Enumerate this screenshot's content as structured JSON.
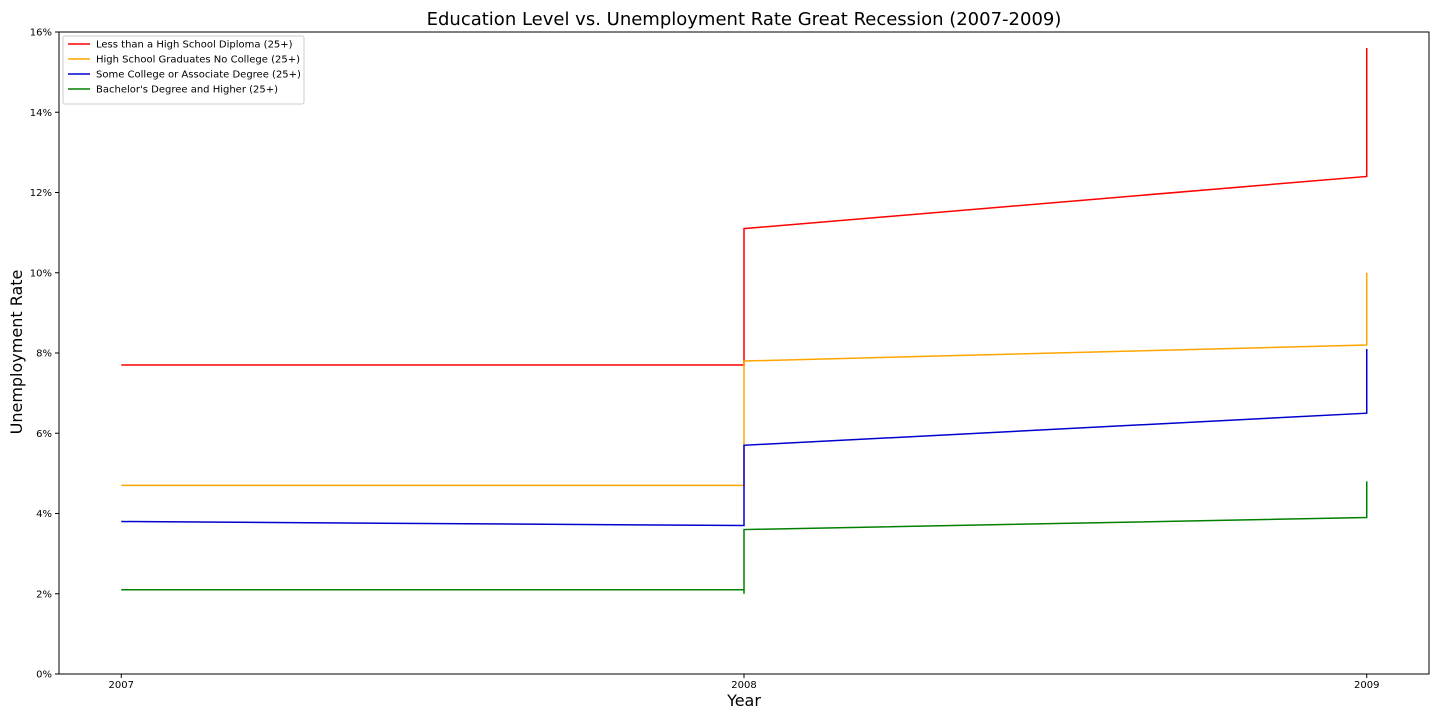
{
  "chart_data": {
    "type": "line",
    "title": "Education Level vs. Unemployment Rate Great Recession (2007-2009)",
    "xlabel": "Year",
    "ylabel": "Unemployment Rate",
    "xlim": [
      2006.9,
      2009.1
    ],
    "ylim": [
      0,
      16
    ],
    "x_ticks": [
      2007,
      2008,
      2009
    ],
    "x_tick_labels": [
      "2007",
      "2008",
      "2009"
    ],
    "y_ticks": [
      0,
      2,
      4,
      6,
      8,
      10,
      12,
      14,
      16
    ],
    "y_tick_labels": [
      "0%",
      "2%",
      "4%",
      "6%",
      "8%",
      "10%",
      "12%",
      "14%",
      "16%"
    ],
    "grid": false,
    "legend_position": "top-left",
    "series": [
      {
        "name": "Less than a High School Diploma (25+)",
        "color": "#ff0000",
        "points": [
          [
            2007.0,
            7.7
          ],
          [
            2008.0,
            7.7
          ],
          [
            2008.0,
            8.7
          ],
          [
            2008.0,
            8.4
          ],
          [
            2008.0,
            11.1
          ],
          [
            2009.0,
            12.4
          ],
          [
            2009.0,
            15.6
          ]
        ]
      },
      {
        "name": "High School Graduates No College (25+)",
        "color": "#ffa500",
        "points": [
          [
            2007.0,
            4.7
          ],
          [
            2008.0,
            4.7
          ],
          [
            2008.0,
            5.8
          ],
          [
            2008.0,
            7.4
          ],
          [
            2008.0,
            7.8
          ],
          [
            2009.0,
            8.2
          ],
          [
            2009.0,
            10.0
          ],
          [
            2009.0,
            9.7
          ]
        ]
      },
      {
        "name": "Some College or Associate Degree (25+)",
        "color": "#0000cd",
        "points": [
          [
            2007.0,
            3.8
          ],
          [
            2008.0,
            3.7
          ],
          [
            2008.0,
            4.6
          ],
          [
            2008.0,
            5.7
          ],
          [
            2009.0,
            6.5
          ],
          [
            2009.0,
            8.1
          ]
        ]
      },
      {
        "name": "Bachelor's Degree and Higher (25+)",
        "color": "#008000",
        "points": [
          [
            2007.0,
            2.1
          ],
          [
            2008.0,
            2.1
          ],
          [
            2008.0,
            2.0
          ],
          [
            2008.0,
            2.6
          ],
          [
            2008.0,
            3.6
          ],
          [
            2009.0,
            3.9
          ],
          [
            2009.0,
            4.8
          ]
        ]
      }
    ]
  }
}
